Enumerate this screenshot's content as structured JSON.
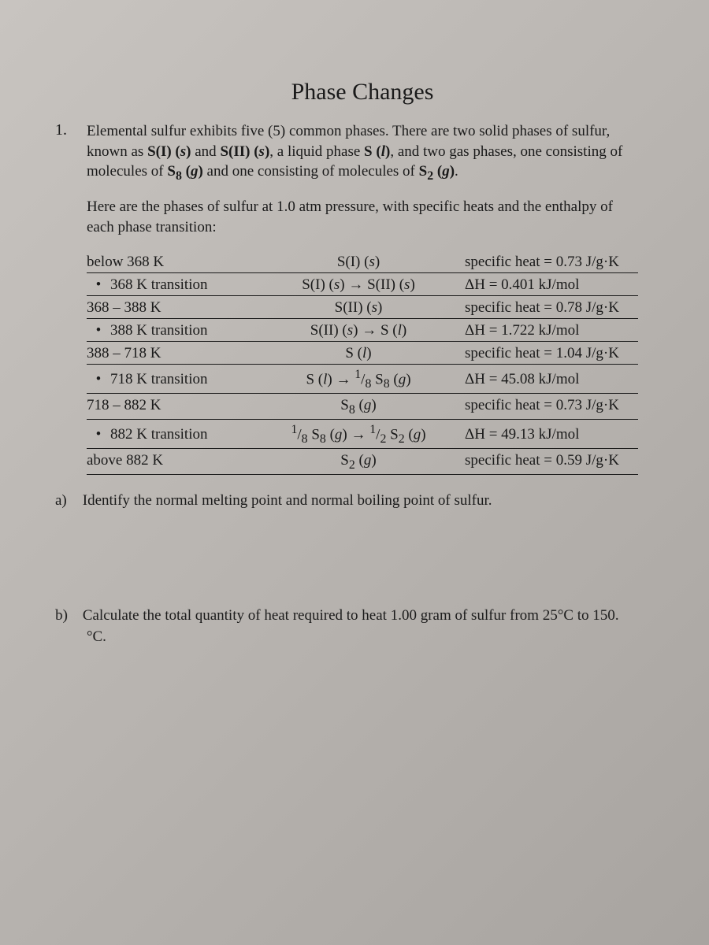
{
  "title": "Phase Changes",
  "problem_number": "1.",
  "intro_p1_html": "Elemental sulfur exhibits five (5) common phases.  There are two solid phases of sulfur, known as <b>S(I) (<i>s</i>)</b> and <b>S(II) (<i>s</i>)</b>, a liquid phase <b>S (<i>l</i>)</b>, and two gas phases, one consisting of molecules of <b>S<sub>8</sub> (<i>g</i>)</b> and one consisting of molecules of <b>S<sub>2</sub> (<i>g</i>)</b>.",
  "intro_p2": "Here are the phases of sulfur at 1.0 atm pressure, with specific heats and the enthalpy of each phase transition:",
  "rows": [
    {
      "condition": "below 368 K",
      "bullet": false,
      "phase_html": "S(I) (<i>s</i>)",
      "value": "specific heat = 0.73 J/g·K"
    },
    {
      "condition": "368 K transition",
      "bullet": true,
      "phase_html": "S(I) (<i>s</i>)  →  S(II) (<i>s</i>)",
      "value": "ΔH = 0.401 kJ/mol"
    },
    {
      "condition": "368 – 388 K",
      "bullet": false,
      "phase_html": "S(II) (<i>s</i>)",
      "value": "specific heat = 0.78 J/g·K"
    },
    {
      "condition": "388 K transition",
      "bullet": true,
      "phase_html": "S(II) (<i>s</i>)  →  S (<i>l</i>)",
      "value": "ΔH = 1.722 kJ/mol"
    },
    {
      "condition": "388 – 718 K",
      "bullet": false,
      "phase_html": "S (<i>l</i>)",
      "value": "specific heat = 1.04 J/g·K"
    },
    {
      "condition": "718 K transition",
      "bullet": true,
      "phase_html": "S (<i>l</i>)  →  <sup>1</sup>/<sub>8</sub> S<sub>8</sub> (<i>g</i>)",
      "value": "ΔH = 45.08 kJ/mol"
    },
    {
      "condition": "718 – 882 K",
      "bullet": false,
      "phase_html": "S<sub>8</sub> (<i>g</i>)",
      "value": "specific heat = 0.73 J/g·K"
    },
    {
      "condition": "882 K transition",
      "bullet": true,
      "phase_html": "<sup>1</sup>/<sub>8</sub> S<sub>8</sub> (<i>g</i>)  →  <sup>1</sup>/<sub>2</sub> S<sub>2</sub> (<i>g</i>)",
      "value": "ΔH = 49.13 kJ/mol"
    },
    {
      "condition": "above 882 K",
      "bullet": false,
      "phase_html": "S<sub>2</sub> (<i>g</i>)",
      "value": "specific heat = 0.59 J/g·K"
    }
  ],
  "question_a_label": "a)",
  "question_a": "Identify the normal melting point and normal boiling point of sulfur.",
  "question_b_label": "b)",
  "question_b": "Calculate the total quantity of heat required to heat 1.00 gram of sulfur from 25°C to 150.°C.",
  "colors": {
    "text": "#1a1a1a",
    "bg_gradient_start": "#c8c4c0",
    "bg_gradient_end": "#a8a4a0",
    "border": "#1a1a1a"
  },
  "typography": {
    "font_family": "Times New Roman",
    "title_fontsize": 30,
    "body_fontsize": 19
  }
}
